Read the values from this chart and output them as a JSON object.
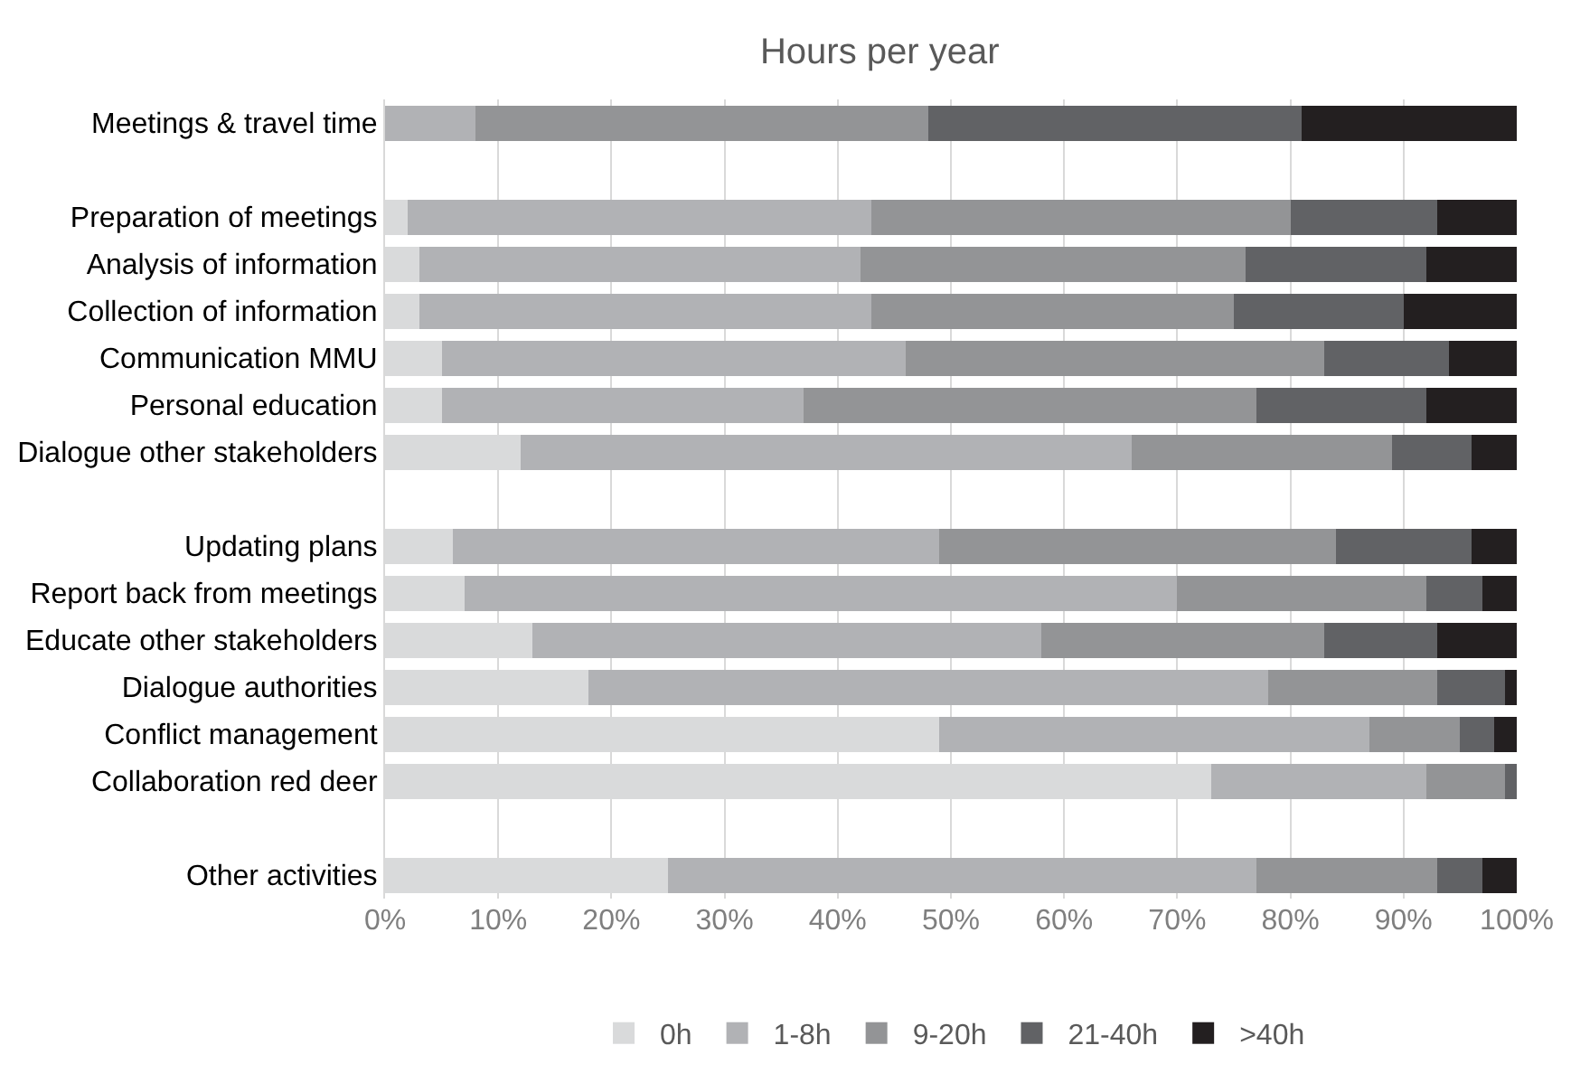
{
  "chart_data": {
    "type": "bar",
    "orientation": "horizontal",
    "stacked": true,
    "title": "Hours per year",
    "categories": [
      "Meetings & travel time",
      null,
      "Preparation of meetings",
      "Analysis of information",
      "Collection of information",
      "Communication MMU",
      "Personal education",
      "Dialogue other stakeholders",
      null,
      "Updating plans",
      "Report back from meetings",
      "Educate other stakeholders",
      "Dialogue authorities",
      "Conflict management",
      "Collaboration red deer",
      null,
      "Other activities"
    ],
    "series": [
      {
        "name": "0h",
        "color": "#d9dadb",
        "values": [
          0,
          null,
          2,
          3,
          3,
          5,
          5,
          12,
          null,
          6,
          7,
          13,
          18,
          49,
          73,
          null,
          25
        ]
      },
      {
        "name": "1-8h",
        "color": "#b1b2b5",
        "values": [
          8,
          null,
          41,
          39,
          40,
          41,
          32,
          54,
          null,
          43,
          63,
          45,
          60,
          38,
          19,
          null,
          52
        ]
      },
      {
        "name": "9-20h",
        "color": "#939496",
        "values": [
          40,
          null,
          37,
          34,
          32,
          37,
          40,
          23,
          null,
          35,
          22,
          25,
          15,
          8,
          7,
          null,
          16
        ]
      },
      {
        "name": "21-40h",
        "color": "#616265",
        "values": [
          33,
          null,
          13,
          16,
          15,
          11,
          15,
          7,
          null,
          12,
          5,
          10,
          6,
          3,
          1,
          null,
          4
        ]
      },
      {
        "name": ">40h",
        "color": "#231f20",
        "values": [
          19,
          null,
          7,
          8,
          10,
          6,
          8,
          4,
          null,
          4,
          3,
          7,
          1,
          2,
          0,
          null,
          3
        ]
      }
    ],
    "xlim": [
      0,
      100
    ],
    "xticks": [
      {
        "value": 0,
        "label": "0%"
      },
      {
        "value": 10,
        "label": "10%"
      },
      {
        "value": 20,
        "label": "20%"
      },
      {
        "value": 30,
        "label": "30%"
      },
      {
        "value": 40,
        "label": "40%"
      },
      {
        "value": 50,
        "label": "50%"
      },
      {
        "value": 60,
        "label": "60%"
      },
      {
        "value": 70,
        "label": "70%"
      },
      {
        "value": 80,
        "label": "80%"
      },
      {
        "value": 90,
        "label": "90%"
      },
      {
        "value": 100,
        "label": "100%"
      }
    ],
    "grid": "x",
    "legend": "bottom"
  }
}
